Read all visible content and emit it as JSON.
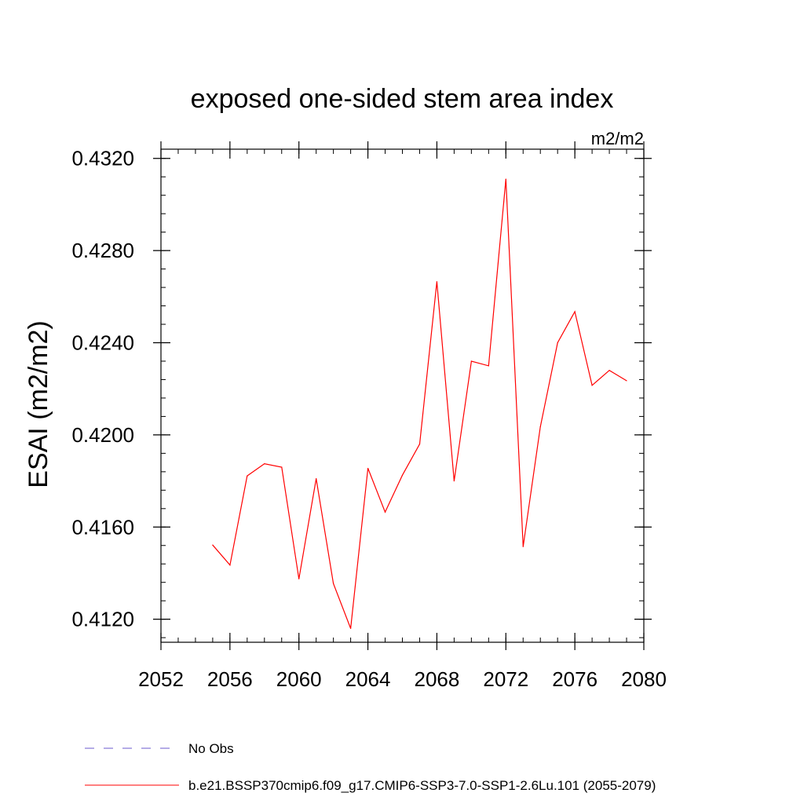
{
  "chart_data": {
    "type": "line",
    "title": "exposed one-sided stem area index",
    "units": "m2/m2",
    "xlabel": "",
    "ylabel": "ESAI  (m2/m2)",
    "xlim": [
      2052,
      2080
    ],
    "ylim": [
      0.411,
      0.4324
    ],
    "x_ticks": [
      2052,
      2056,
      2060,
      2064,
      2068,
      2072,
      2076,
      2080
    ],
    "x_tick_labels": [
      "2052",
      "2056",
      "2060",
      "2064",
      "2068",
      "2072",
      "2076",
      "2080"
    ],
    "x_minor_step": 1,
    "y_ticks": [
      0.412,
      0.416,
      0.42,
      0.424,
      0.428,
      0.432
    ],
    "y_tick_labels": [
      "0.4120",
      "0.4160",
      "0.4200",
      "0.4240",
      "0.4280",
      "0.4320"
    ],
    "y_minor_step": 0.0008,
    "grid": false,
    "series": [
      {
        "name": "b.e21.BSSP370cmip6.f09_g17.CMIP6-SSP3-7.0-SSP1-2.6Lu.101 (2055-2079)",
        "color": "#ff0000",
        "style": "solid",
        "x": [
          2055,
          2056,
          2057,
          2058,
          2059,
          2060,
          2061,
          2062,
          2063,
          2064,
          2065,
          2066,
          2067,
          2068,
          2069,
          2070,
          2071,
          2072,
          2073,
          2074,
          2075,
          2076,
          2077,
          2078,
          2079
        ],
        "values": [
          0.41522,
          0.41435,
          0.41822,
          0.41875,
          0.4186,
          0.41375,
          0.4181,
          0.41355,
          0.4116,
          0.41855,
          0.41665,
          0.41825,
          0.4196,
          0.42665,
          0.418,
          0.4232,
          0.423,
          0.4311,
          0.41515,
          0.42035,
          0.424,
          0.42535,
          0.42215,
          0.4228,
          0.42235
        ]
      }
    ],
    "legend": [
      {
        "label": "No Obs",
        "color": "#6a5acd",
        "style": "dashed"
      },
      {
        "label": "b.e21.BSSP370cmip6.f09_g17.CMIP6-SSP3-7.0-SSP1-2.6Lu.101 (2055-2079)",
        "color": "#ff0000",
        "style": "solid"
      }
    ],
    "legend_position": "bottom"
  }
}
